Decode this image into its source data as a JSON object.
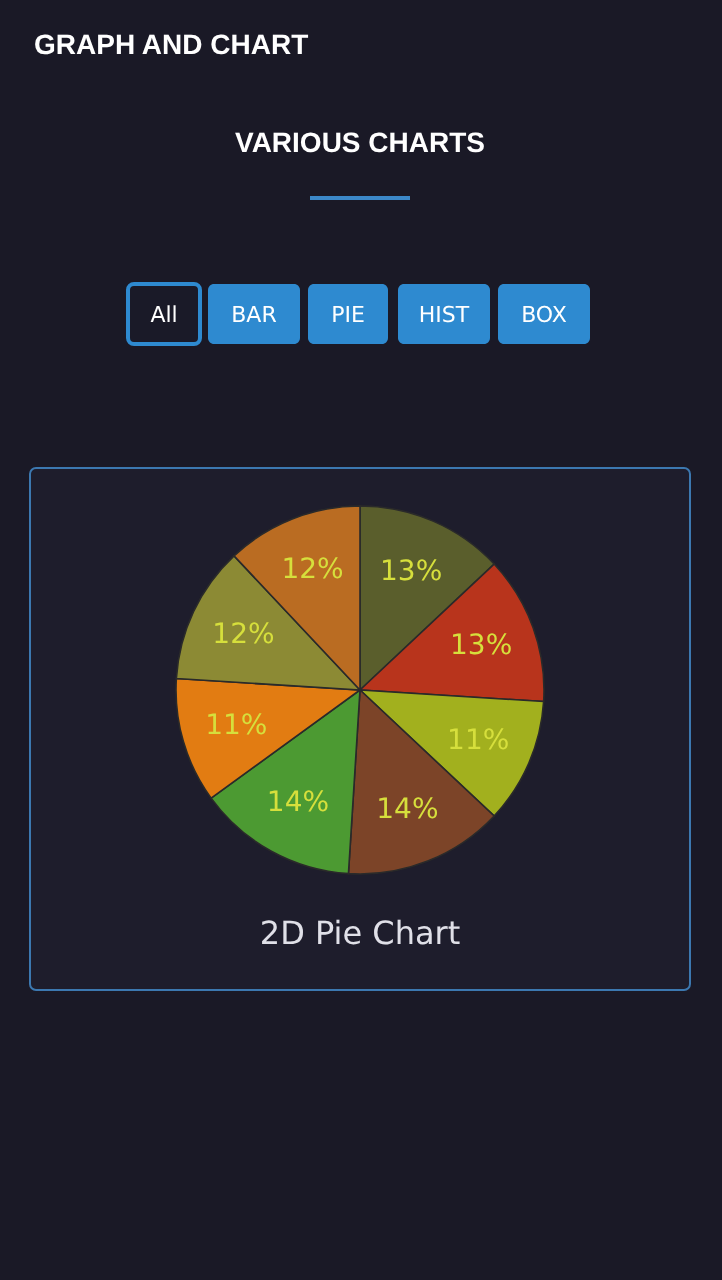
{
  "chart_data": {
    "type": "pie",
    "title": "2D Pie Chart",
    "categories": [
      null,
      null,
      null,
      null,
      null,
      null,
      null,
      null
    ],
    "values": [
      13,
      13,
      11,
      14,
      14,
      11,
      12,
      12
    ],
    "colors": [
      "#5a5e2c",
      "#b8341c",
      "#a2b01e",
      "#7c4428",
      "#4c9a32",
      "#e27c12",
      "#8c8a34",
      "#ba6c22"
    ],
    "value_labels": [
      "13%",
      "13%",
      "11%",
      "14%",
      "14%",
      "11%",
      "12%",
      "12%"
    ],
    "annotations": [
      "GRAPH AND CHART",
      "VARIOUS CHARTS",
      "All",
      "BAR",
      "PIE",
      "HIST",
      "BOX"
    ]
  }
}
